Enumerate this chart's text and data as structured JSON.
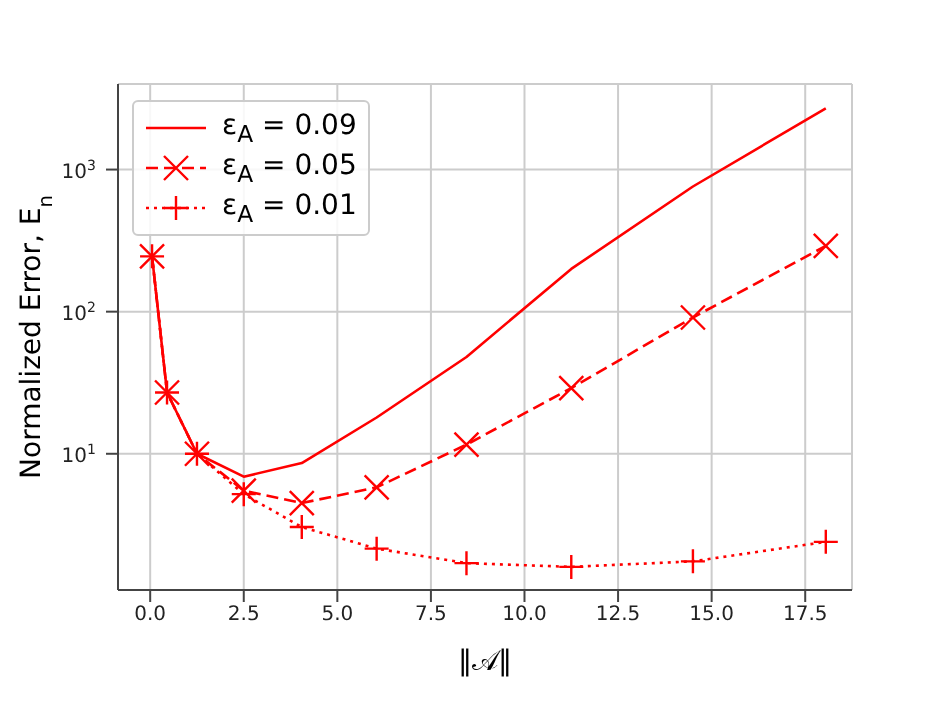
{
  "chart_data": {
    "type": "line",
    "xlabel": "‖𝒜‖",
    "ylabel": "Normalized Error, E$_{n}$",
    "log": "y",
    "grid": true,
    "legend": "top left",
    "x": [
      0.05,
      0.45,
      1.25,
      2.5,
      4.05,
      6.05,
      8.45,
      11.25,
      14.5,
      18.05
    ],
    "xlim": [
      -0.86,
      18.75
    ],
    "xticks": [
      {
        "value": 0,
        "label": "0.0"
      },
      {
        "value": 2.5,
        "label": "2.5"
      },
      {
        "value": 5,
        "label": "5.0"
      },
      {
        "value": 7.5,
        "label": "7.5"
      },
      {
        "value": 10,
        "label": "10.0"
      },
      {
        "value": 12.5,
        "label": "12.5"
      },
      {
        "value": 15,
        "label": "15.0"
      },
      {
        "value": 17.5,
        "label": "17.5"
      }
    ],
    "ylim": [
      1.1,
      4000
    ],
    "yticks": [
      {
        "value": 10,
        "label": "10$^{1}$"
      },
      {
        "value": 100,
        "label": "10$^{2}$"
      },
      {
        "value": 1000,
        "label": "10$^{3}$"
      }
    ],
    "series": [
      {
        "name": "ε$_{A}$ = 0.09",
        "color": "#ff0000",
        "line_style": "solid",
        "marker": "none",
        "values": [
          245,
          27,
          10,
          6.9,
          8.6,
          18,
          48,
          200,
          760,
          2700
        ]
      },
      {
        "name": "ε$_{A}$ = 0.05",
        "color": "#ff0000",
        "line_style": "dashed",
        "marker": "x",
        "values": [
          245,
          27,
          10,
          5.5,
          4.5,
          5.8,
          11.6,
          29,
          91,
          290
        ]
      },
      {
        "name": "ε$_{A}$ = 0.01",
        "color": "#ff0000",
        "line_style": "dotted",
        "marker": "plus",
        "values": [
          245,
          27,
          10,
          5.2,
          3.05,
          2.15,
          1.7,
          1.6,
          1.75,
          2.4
        ]
      }
    ]
  }
}
